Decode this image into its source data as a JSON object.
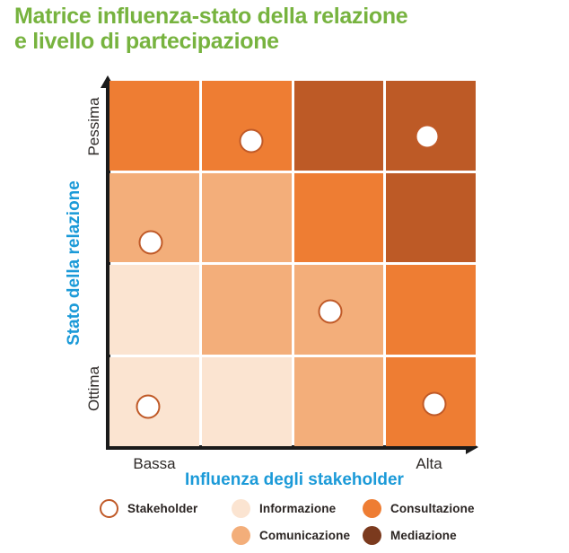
{
  "title": {
    "line1": "Matrice influenza-stato della relazione",
    "line2": "e livello di partecipazione",
    "color": "#77b33f"
  },
  "chart_data": {
    "type": "heatmap",
    "title": "Matrice influenza-stato della relazione e livello di partecipazione",
    "x_axis": {
      "label": "Influenza degli stakeholder",
      "ticks": [
        "Bassa",
        "Alta"
      ],
      "color": "#1b9ad8"
    },
    "y_axis": {
      "label": "Stato della relazione",
      "ticks": [
        "Pessima",
        "Ottima"
      ],
      "color": "#1b9ad8"
    },
    "levels": [
      {
        "key": "informazione",
        "label": "Informazione",
        "color": "#fbe4d1"
      },
      {
        "key": "comunicazione",
        "label": "Comunicazione",
        "color": "#f3ae7a"
      },
      {
        "key": "consultazione",
        "label": "Consultazione",
        "color": "#ee7d33"
      },
      {
        "key": "mediazione",
        "label": "Mediazione",
        "color": "#7b3a1e",
        "cell_color": "#bd5a26"
      }
    ],
    "cells_rows_top_to_bottom": [
      [
        "consultazione",
        "consultazione",
        "mediazione",
        "mediazione"
      ],
      [
        "comunicazione",
        "comunicazione",
        "consultazione",
        "mediazione"
      ],
      [
        "informazione",
        "comunicazione",
        "comunicazione",
        "consultazione"
      ],
      [
        "informazione",
        "informazione",
        "comunicazione",
        "consultazione"
      ]
    ],
    "stakeholder_markers": [
      {
        "cell": {
          "row": 1,
          "col": 2
        },
        "x_pct": 38.7,
        "y_pct": 16.5
      },
      {
        "cell": {
          "row": 1,
          "col": 4
        },
        "x_pct": 86.8,
        "y_pct": 15.2
      },
      {
        "cell": {
          "row": 2,
          "col": 1
        },
        "x_pct": 11.3,
        "y_pct": 44.2
      },
      {
        "cell": {
          "row": 3,
          "col": 3
        },
        "x_pct": 60.3,
        "y_pct": 63.1
      },
      {
        "cell": {
          "row": 4,
          "col": 1
        },
        "x_pct": 10.5,
        "y_pct": 89.2
      },
      {
        "cell": {
          "row": 4,
          "col": 4
        },
        "x_pct": 88.7,
        "y_pct": 88.5
      }
    ],
    "marker_style": {
      "fill": "#ffffff",
      "outline": "#c05a28"
    }
  },
  "legend": {
    "columns": [
      [
        {
          "label": "Stakeholder",
          "swatch": "outline",
          "color": "#c05a28"
        }
      ],
      [
        {
          "label": "Informazione",
          "swatch": "fill",
          "color": "#fbe4d1"
        },
        {
          "label": "Comunicazione",
          "swatch": "fill",
          "color": "#f3ae7a"
        }
      ],
      [
        {
          "label": "Consultazione",
          "swatch": "fill",
          "color": "#ee7d33"
        },
        {
          "label": "Mediazione",
          "swatch": "fill",
          "color": "#7b3a1e"
        }
      ]
    ]
  }
}
